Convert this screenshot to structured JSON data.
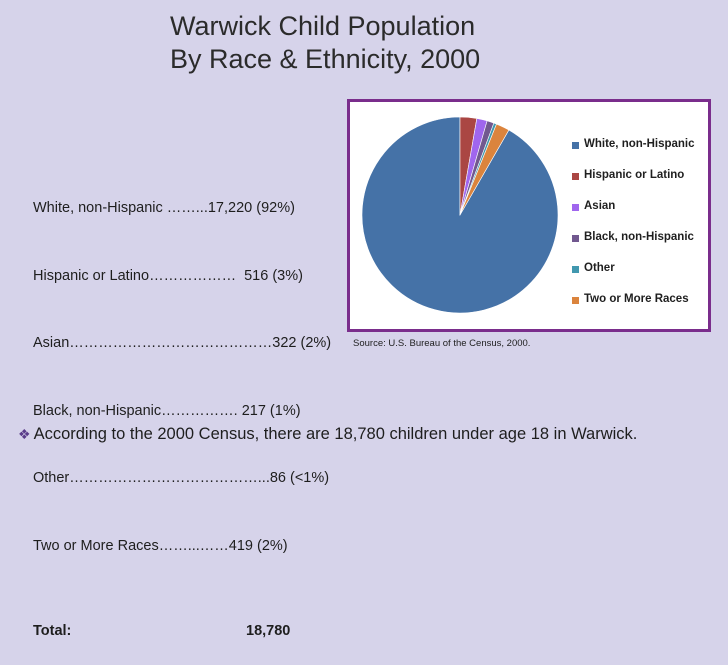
{
  "title": {
    "line1": "Warwick Child Population",
    "line2": "By Race & Ethnicity, 2000"
  },
  "stats": {
    "rows": [
      {
        "text": "White, non-Hispanic ……...17,220 (92%)"
      },
      {
        "text": "Hispanic or Latino………………  516 (3%)"
      },
      {
        "text": "Asian……………………………………322 (2%)"
      },
      {
        "text": "Black, non-Hispanic……………. 217 (1%)"
      },
      {
        "text": "Other…………………………………...86 (<1%)"
      },
      {
        "text": "Two or More Races……...……419 (2%)"
      }
    ],
    "total_label": "Total:",
    "total_value": "18,780"
  },
  "chart_data": {
    "type": "pie",
    "categories": [
      "White, non-Hispanic",
      "Hispanic or Latino",
      "Asian",
      "Black, non-Hispanic",
      "Other",
      "Two or More Races"
    ],
    "values": [
      17220,
      516,
      322,
      217,
      86,
      419
    ],
    "colors": [
      "#4572a7",
      "#aa4643",
      "#a066ee",
      "#71588f",
      "#4198af",
      "#db843d"
    ],
    "legend_position": "right"
  },
  "source": "Source: U.S. Bureau of the Census, 2000.",
  "note": {
    "bullet": "❖",
    "text": "According to the 2000 Census, there are 18,780 children under age 18 in Warwick."
  }
}
